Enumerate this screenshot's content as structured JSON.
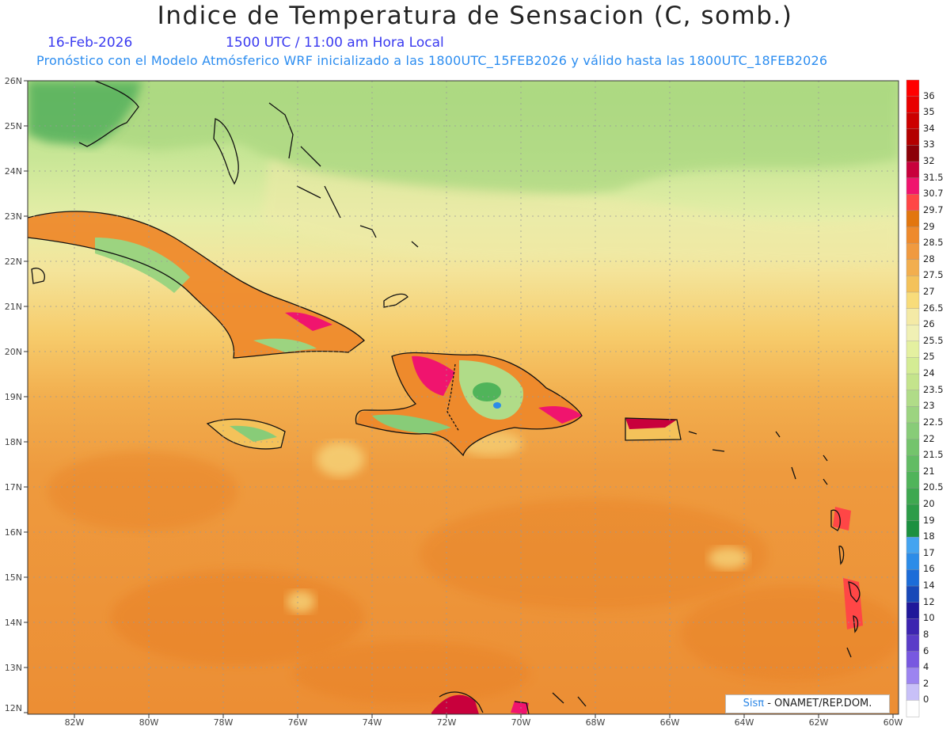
{
  "header": {
    "title": "Indice de Temperatura de Sensacion (C, somb.)",
    "date": "16-Feb-2026",
    "time": "1500 UTC / 11:00 am Hora Local",
    "subtitle": "Pronóstico con el Modelo Atmósferico WRF inicializado a las 1800UTC_15FEB2026 y válido hasta las  1800UTC_18FEB2026"
  },
  "map": {
    "lat_labels": [
      "26N",
      "25N",
      "24N",
      "23N",
      "22N",
      "21N",
      "20N",
      "19N",
      "18N",
      "17N",
      "16N",
      "15N",
      "14N",
      "13N",
      "12N"
    ],
    "lon_labels": [
      "82W",
      "80W",
      "78W",
      "76W",
      "74W",
      "72W",
      "70W",
      "68W",
      "66W",
      "64W",
      "62W",
      "60W"
    ]
  },
  "legend": {
    "labels": [
      "36",
      "35",
      "34",
      "33",
      "32",
      "31.5",
      "30.7",
      "29.7",
      "29",
      "28.5",
      "28",
      "27.5",
      "27",
      "26.5",
      "26",
      "25.5",
      "25",
      "24",
      "23.5",
      "23",
      "22.5",
      "22",
      "21.5",
      "21",
      "20.5",
      "20",
      "19",
      "18",
      "17",
      "16",
      "14",
      "12",
      "10",
      "8",
      "6",
      "4",
      "2",
      "0"
    ],
    "colors": [
      "#ff0000",
      "#e80000",
      "#cc0000",
      "#b30000",
      "#8c0008",
      "#c8003c",
      "#f0146e",
      "#ff4646",
      "#e2760f",
      "#ee8a2c",
      "#f09a40",
      "#f2ae4e",
      "#f4c25a",
      "#f8dc7a",
      "#f4eaa6",
      "#f0f0b4",
      "#e4f0a0",
      "#d4ec94",
      "#c4e48c",
      "#b0dc88",
      "#9cd480",
      "#88cc78",
      "#74c46c",
      "#62bc64",
      "#50b45a",
      "#3ea850",
      "#2c9c48",
      "#1c9040",
      "#44a4f0",
      "#2c8ce8",
      "#1c6cd8",
      "#1848b8",
      "#20189a",
      "#3c24b0",
      "#5a3cc8",
      "#7858e0",
      "#9c84f0",
      "#c8c0f8",
      "#ffffff"
    ]
  },
  "credit": {
    "sis": "Sisπ",
    "rest": "- ONAMET/REP.DOM."
  }
}
